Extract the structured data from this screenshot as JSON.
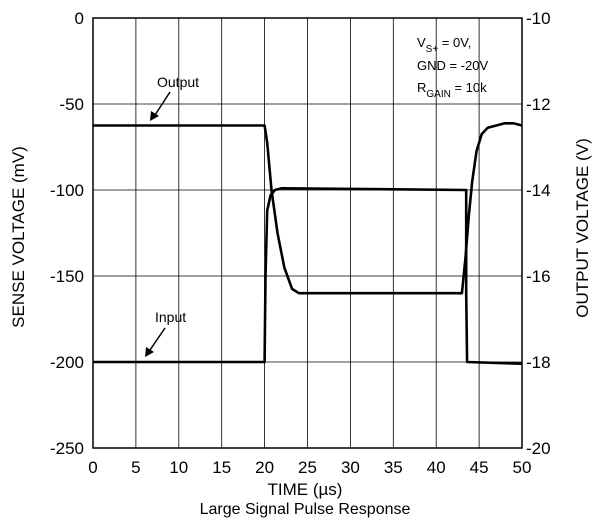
{
  "chart_data": {
    "type": "line",
    "title": "",
    "caption": "Large Signal Pulse Response",
    "xlabel": "TIME (µs)",
    "ylabel": "SENSE VOLTAGE (mV)",
    "y2label": "OUTPUT VOLTAGE (V)",
    "xlim": [
      0,
      50
    ],
    "ylim": [
      -250,
      0
    ],
    "y2lim": [
      -20,
      -10
    ],
    "xticks": [
      "0",
      "5",
      "10",
      "15",
      "20",
      "25",
      "30",
      "35",
      "40",
      "45",
      "50"
    ],
    "yticks": [
      "0",
      "-50",
      "-100",
      "-150",
      "-200",
      "-250"
    ],
    "y2ticks": [
      "-10",
      "-12",
      "-14",
      "-16",
      "-18",
      "-20"
    ],
    "grid": true,
    "annotation": {
      "line1_base": "V",
      "line1_sub": "S+",
      "line1_rest": " = 0V,",
      "line2": "GND = -20V",
      "line3_base": "R",
      "line3_sub": "GAIN",
      "line3_rest": " = 10k"
    },
    "series": [
      {
        "name": "Output",
        "axis": "right",
        "points": [
          [
            0,
            -12.5
          ],
          [
            20,
            -12.5
          ],
          [
            20.3,
            -12.9
          ],
          [
            20.8,
            -14.0
          ],
          [
            21.5,
            -15.0
          ],
          [
            22.3,
            -15.8
          ],
          [
            23.2,
            -16.3
          ],
          [
            24,
            -16.4
          ],
          [
            43,
            -16.4
          ],
          [
            43.4,
            -15.6
          ],
          [
            43.8,
            -14.6
          ],
          [
            44.2,
            -13.8
          ],
          [
            44.7,
            -13.1
          ],
          [
            45.3,
            -12.7
          ],
          [
            46,
            -12.55
          ],
          [
            47,
            -12.5
          ],
          [
            48,
            -12.45
          ],
          [
            49,
            -12.45
          ],
          [
            50,
            -12.5
          ]
        ]
      },
      {
        "name": "Input",
        "axis": "left",
        "points": [
          [
            0,
            -200
          ],
          [
            20,
            -200
          ],
          [
            20.1,
            -150
          ],
          [
            20.3,
            -112
          ],
          [
            20.7,
            -103
          ],
          [
            21.2,
            -100
          ],
          [
            22,
            -99
          ],
          [
            43.5,
            -100
          ],
          [
            43.5,
            -160
          ],
          [
            43.6,
            -200
          ],
          [
            50,
            -201
          ]
        ]
      }
    ],
    "labels": {
      "output": "Output",
      "input": "Input"
    }
  }
}
